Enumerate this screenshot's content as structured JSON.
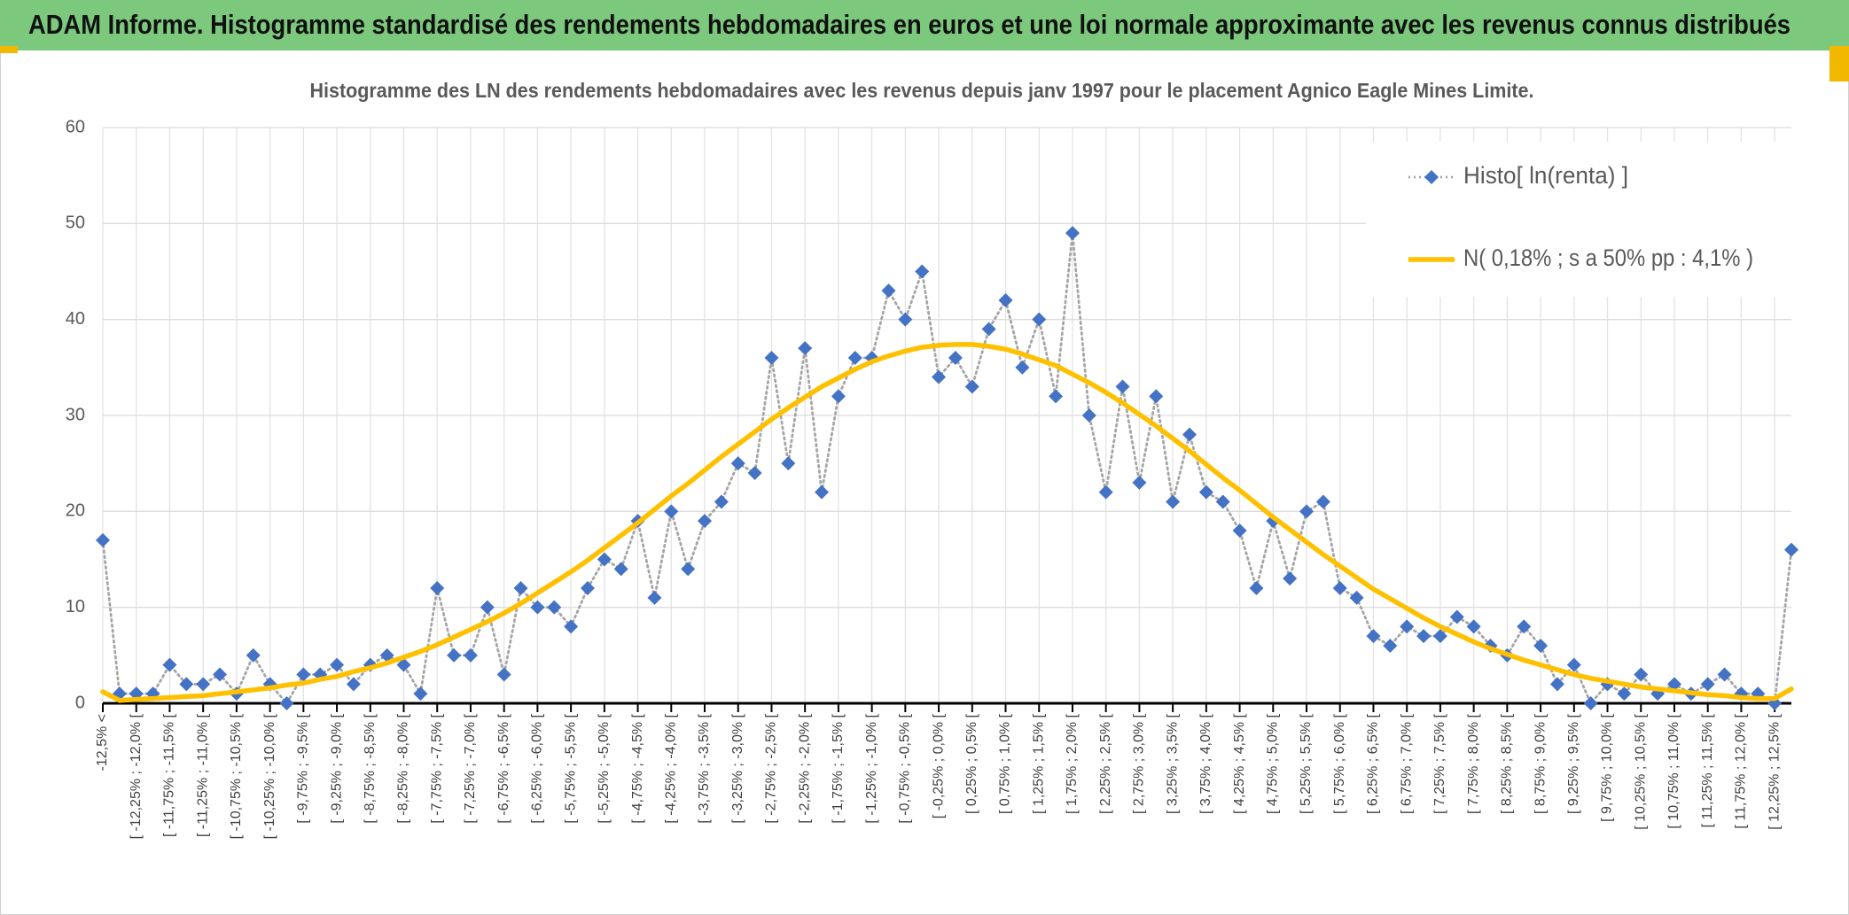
{
  "header": {
    "title": "ADAM Informe. Histogramme standardisé des rendements hebdomadaires en euros et une loi normale approximante avec les revenus connus distribués"
  },
  "chart_data": {
    "type": "line",
    "title": "Histogramme des LN des rendements hebdomadaires avec les revenus depuis janv 1997 pour le placement Agnico Eagle Mines Limite.",
    "categories": [
      "-12,5% <",
      null,
      "[ -12,25% ; -12,0% [",
      null,
      "[ -11,75% ; -11,5% [",
      null,
      "[ -11,25% ; -11,0% [",
      null,
      "[ -10,75% ; -10,5% [",
      null,
      "[ -10,25% ; -10,0% [",
      null,
      "[ -9,75% ; -9,5% [",
      null,
      "[ -9,25% ; -9,0% [",
      null,
      "[ -8,75% ; -8,5% [",
      null,
      "[ -8,25% ; -8,0% [",
      null,
      "[ -7,75% ; -7,5% [",
      null,
      "[ -7,25% ; -7,0% [",
      null,
      "[ -6,75% ; -6,5% [",
      null,
      "[ -6,25% ; -6,0% [",
      null,
      "[ -5,75% ; -5,5% [",
      null,
      "[ -5,25% ; -5,0% [",
      null,
      "[ -4,75% ; -4,5% [",
      null,
      "[ -4,25% ; -4,0% [",
      null,
      "[ -3,75% ; -3,5% [",
      null,
      "[ -3,25% ; -3,0% [",
      null,
      "[ -2,75% ; -2,5% [",
      null,
      "[ -2,25% ; -2,0% [",
      null,
      "[ -1,75% ; -1,5% [",
      null,
      "[ -1,25% ; -1,0% [",
      null,
      "[ -0,75% ; -0,5% [",
      null,
      "[ -0,25% ; 0,0% [",
      null,
      "[ 0,25% ; 0,5% [",
      null,
      "[ 0,75% ; 1,0% [",
      null,
      "[ 1,25% ; 1,5% [",
      null,
      "[ 1,75% ; 2,0% [",
      null,
      "[ 2,25% ; 2,5% [",
      null,
      "[ 2,75% ; 3,0% [",
      null,
      "[ 3,25% ; 3,5% [",
      null,
      "[ 3,75% ; 4,0% [",
      null,
      "[ 4,25% ; 4,5% [",
      null,
      "[ 4,75% ; 5,0% [",
      null,
      "[ 5,25% ; 5,5% [",
      null,
      "[ 5,75% ; 6,0% [",
      null,
      "[ 6,25% ; 6,5% [",
      null,
      "[ 6,75% ; 7,0% [",
      null,
      "[ 7,25% ; 7,5% [",
      null,
      "[ 7,75% ; 8,0% [",
      null,
      "[ 8,25% ; 8,5% [",
      null,
      "[ 8,75% ; 9,0% [",
      null,
      "[ 9,25% ; 9,5% [",
      null,
      "[ 9,75% ; 10,0% [",
      null,
      "[ 10,25% ; 10,5% [",
      null,
      "[ 10,75% ; 11,0% [",
      null,
      "[ 11,25% ; 11,5% [",
      null,
      "[ 11,75% ; 12,0% [",
      null,
      "[ 12,25% ; 12,5% [",
      null
    ],
    "series": [
      {
        "name": "Histo[ ln(renta) ]",
        "color": "#4472c4",
        "line_color": "#a5a5a5",
        "marker": "diamond",
        "line_style": "dotted",
        "values": [
          17,
          1,
          1,
          1,
          4,
          2,
          2,
          3,
          1,
          5,
          2,
          0,
          3,
          3,
          4,
          2,
          4,
          5,
          4,
          1,
          12,
          5,
          5,
          10,
          3,
          12,
          10,
          10,
          8,
          12,
          15,
          14,
          19,
          11,
          20,
          14,
          19,
          21,
          25,
          24,
          36,
          25,
          37,
          22,
          32,
          36,
          36,
          43,
          40,
          45,
          34,
          36,
          33,
          39,
          42,
          35,
          40,
          32,
          49,
          30,
          22,
          33,
          23,
          32,
          21,
          28,
          22,
          21,
          18,
          12,
          19,
          13,
          20,
          21,
          12,
          11,
          7,
          6,
          8,
          7,
          7,
          9,
          8,
          6,
          5,
          8,
          6,
          2,
          4,
          0,
          2,
          1,
          3,
          1,
          2,
          1,
          2,
          3,
          1,
          1,
          0,
          16
        ]
      },
      {
        "name": "N( 0,18% ; s a 50% pp : 4,1% )",
        "color": "#ffc000",
        "line_style": "solid",
        "values": [
          1.2,
          0.3,
          0.4,
          0.5,
          0.6,
          0.7,
          0.8,
          1.0,
          1.2,
          1.4,
          1.6,
          1.9,
          2.1,
          2.5,
          2.8,
          3.3,
          3.7,
          4.2,
          4.8,
          5.4,
          6.1,
          6.9,
          7.7,
          8.5,
          9.4,
          10.4,
          11.5,
          12.6,
          13.7,
          14.9,
          16.2,
          17.5,
          18.8,
          20.2,
          21.6,
          22.9,
          24.3,
          25.7,
          27.0,
          28.3,
          29.6,
          30.8,
          31.9,
          33.0,
          33.9,
          34.8,
          35.6,
          36.2,
          36.7,
          37.1,
          37.3,
          37.4,
          37.4,
          37.2,
          36.9,
          36.4,
          35.8,
          35.2,
          34.3,
          33.4,
          32.4,
          31.3,
          30.1,
          28.9,
          27.6,
          26.3,
          24.9,
          23.5,
          22.2,
          20.8,
          19.4,
          18.1,
          16.8,
          15.5,
          14.3,
          13.1,
          11.9,
          10.9,
          9.9,
          8.9,
          8.0,
          7.2,
          6.4,
          5.7,
          5.1,
          4.5,
          4.0,
          3.5,
          3.0,
          2.6,
          2.3,
          2.0,
          1.7,
          1.5,
          1.3,
          1.1,
          0.9,
          0.8,
          0.6,
          0.5,
          0.5,
          1.5
        ]
      }
    ],
    "ylim": [
      0,
      60
    ],
    "yticks": [
      0,
      10,
      20,
      30,
      40,
      50,
      60
    ],
    "grid": true,
    "legend": "top-right"
  }
}
